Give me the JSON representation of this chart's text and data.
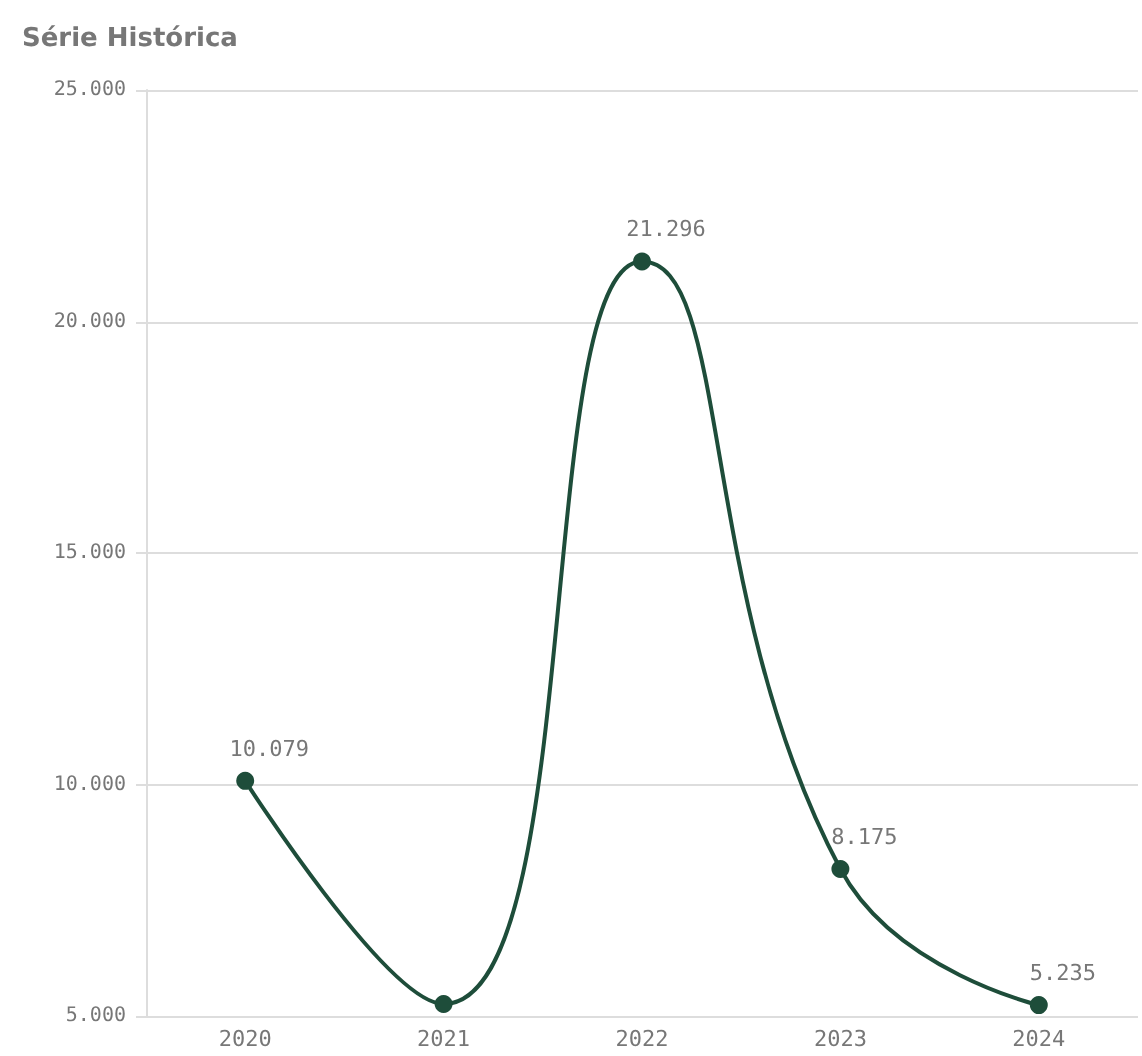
{
  "chart_data": {
    "type": "line",
    "title": "Série Histórica",
    "categories": [
      "2020",
      "2021",
      "2022",
      "2023",
      "2024"
    ],
    "series": [
      {
        "color": "#1e4d3a",
        "values": [
          10079,
          5260,
          21296,
          8175,
          5235
        ],
        "value_labels": [
          "10.079",
          null,
          "21.296",
          "8.175",
          "5.235"
        ]
      }
    ],
    "ylim": [
      5000,
      25000
    ],
    "yticks": [
      {
        "value": 5000,
        "label": "5.000"
      },
      {
        "value": 10000,
        "label": "10.000"
      },
      {
        "value": 15000,
        "label": "15.000"
      },
      {
        "value": 20000,
        "label": "20.000"
      },
      {
        "value": 25000,
        "label": "25.000"
      }
    ],
    "grid": "y",
    "marker": "circle",
    "line_style": "solid"
  }
}
